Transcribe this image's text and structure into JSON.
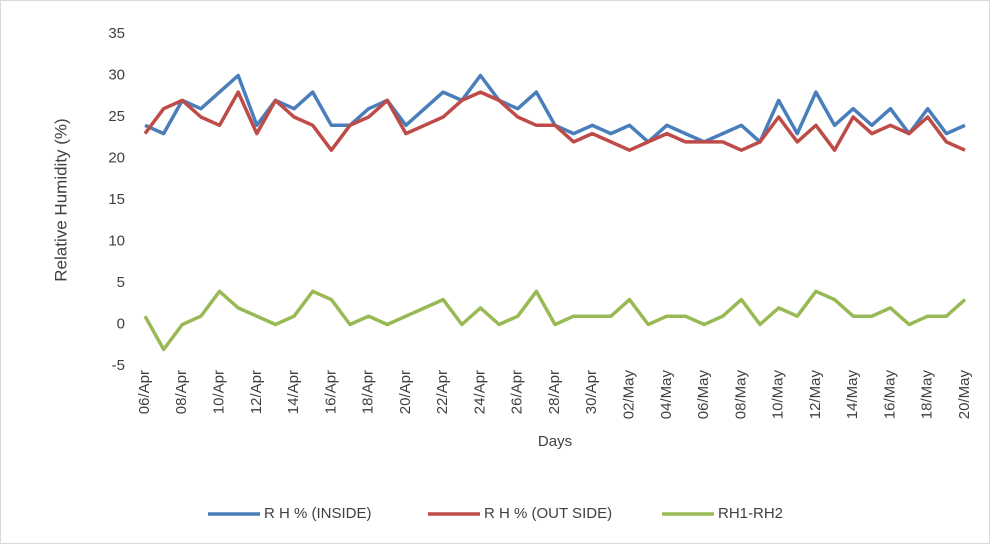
{
  "chart_data": {
    "type": "line",
    "x_label": "Days",
    "y_label": "Relative Humidity (%)",
    "categories": [
      "06/Apr",
      null,
      "08/Apr",
      null,
      "10/Apr",
      null,
      "12/Apr",
      null,
      "14/Apr",
      null,
      "16/Apr",
      null,
      "18/Apr",
      null,
      "20/Apr",
      null,
      "22/Apr",
      null,
      "24/Apr",
      null,
      "26/Apr",
      null,
      "28/Apr",
      null,
      "30/Apr",
      null,
      "02/May",
      null,
      "04/May",
      null,
      "06/May",
      null,
      "08/May",
      null,
      "10/May",
      null,
      "12/May",
      null,
      "14/May",
      null,
      "16/May",
      null,
      "18/May",
      null,
      "20/May"
    ],
    "series": [
      {
        "name": "R H % (INSIDE)",
        "color": "#4a7ebb",
        "values": [
          24,
          23,
          27,
          26,
          28,
          30,
          24,
          27,
          26,
          28,
          24,
          24,
          26,
          27,
          24,
          26,
          28,
          27,
          30,
          27,
          26,
          28,
          24,
          23,
          24,
          23,
          24,
          22,
          24,
          23,
          22,
          23,
          24,
          22,
          27,
          23,
          28,
          24,
          26,
          24,
          26,
          23,
          26,
          23,
          24
        ]
      },
      {
        "name": "R H % (OUT SIDE)",
        "color": "#be4b48",
        "values": [
          23,
          26,
          27,
          25,
          24,
          28,
          23,
          27,
          25,
          24,
          21,
          24,
          25,
          27,
          23,
          24,
          25,
          27,
          28,
          27,
          25,
          24,
          24,
          22,
          23,
          22,
          21,
          22,
          23,
          22,
          22,
          22,
          21,
          22,
          25,
          22,
          24,
          21,
          25,
          23,
          24,
          23,
          25,
          22,
          21
        ]
      },
      {
        "name": "RH1-RH2",
        "color": "#98b954",
        "values": [
          1,
          -3,
          0,
          1,
          4,
          2,
          1,
          0,
          1,
          4,
          3,
          0,
          1,
          0,
          1,
          2,
          3,
          0,
          2,
          0,
          1,
          4,
          0,
          1,
          1,
          1,
          3,
          0,
          1,
          1,
          0,
          1,
          3,
          0,
          2,
          1,
          4,
          3,
          1,
          1,
          2,
          0,
          1,
          1,
          3
        ]
      }
    ],
    "ylim": [
      -5,
      35
    ],
    "yticks": [
      -5,
      0,
      5,
      10,
      15,
      20,
      25,
      30,
      35
    ],
    "grid": false,
    "legend": "bottom"
  }
}
